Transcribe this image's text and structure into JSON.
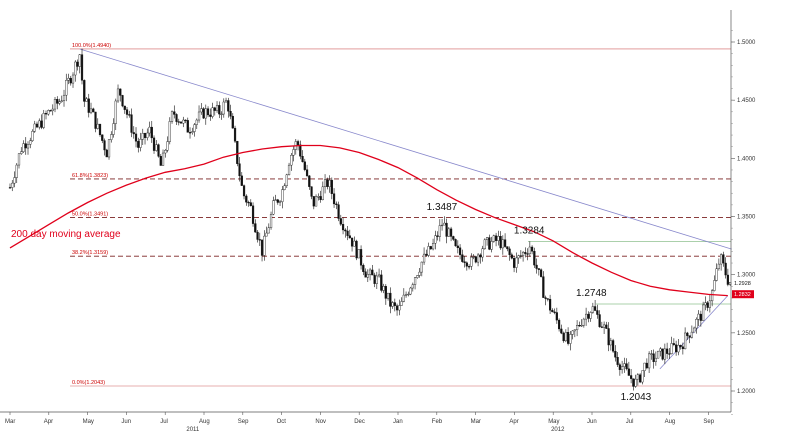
{
  "chart_data": {
    "type": "candlestick",
    "ylim": [
      1.17,
      1.53
    ],
    "y_ticks": [
      {
        "value": 1.2,
        "label": "1.2000"
      },
      {
        "value": 1.25,
        "label": "1.2500"
      },
      {
        "value": 1.3,
        "label": "1.3000"
      },
      {
        "value": 1.35,
        "label": "1.3500"
      },
      {
        "value": 1.4,
        "label": "1.4000"
      },
      {
        "value": 1.45,
        "label": "1.4500"
      },
      {
        "value": 1.5,
        "label": "1.5000"
      }
    ],
    "x_ticks": [
      {
        "label": "Mar",
        "x": 0
      },
      {
        "label": "Apr",
        "x": 1
      },
      {
        "label": "May",
        "x": 2
      },
      {
        "label": "Jun",
        "x": 3
      },
      {
        "label": "Jul",
        "x": 4
      },
      {
        "label": "Aug",
        "x": 5
      },
      {
        "label": "Sep",
        "x": 6
      },
      {
        "label": "Oct",
        "x": 7
      },
      {
        "label": "Nov",
        "x": 8
      },
      {
        "label": "Dec",
        "x": 9
      },
      {
        "label": "Jan",
        "x": 10
      },
      {
        "label": "Feb",
        "x": 11
      },
      {
        "label": "Mar",
        "x": 12
      },
      {
        "label": "Apr",
        "x": 13
      },
      {
        "label": "May",
        "x": 14
      },
      {
        "label": "Jun",
        "x": 15
      },
      {
        "label": "Jul",
        "x": 16
      },
      {
        "label": "Aug",
        "x": 17
      },
      {
        "label": "Sep",
        "x": 18
      }
    ],
    "year_labels": [
      {
        "label": "2011",
        "x": 4.7
      },
      {
        "label": "2012",
        "x": 14.1
      }
    ],
    "fib_levels": [
      {
        "value": 1.494,
        "label": "100.0%(1.4940)"
      },
      {
        "value": 1.3823,
        "label": "61.8%(1.3823)"
      },
      {
        "value": 1.3491,
        "label": "50.0%(1.3491)"
      },
      {
        "value": 1.3159,
        "label": "38.2%(1.3159)"
      },
      {
        "value": 1.2043,
        "label": "0.0%(1.2043)"
      }
    ],
    "horizontal_levels": [
      {
        "value": 1.3284,
        "x_start": 13.35
      },
      {
        "value": 1.2748,
        "x_start": 15.1
      }
    ],
    "annotations": [
      {
        "label": "1.3487",
        "x": 11.15,
        "value": 1.3487
      },
      {
        "label": "1.3284",
        "x": 13.4,
        "value": 1.3284
      },
      {
        "label": "1.2748",
        "x": 15.0,
        "value": 1.2748
      },
      {
        "label": "1.2043",
        "x": 16.15,
        "value": 1.2043
      }
    ],
    "trendlines": [
      {
        "points": [
          [
            1.8,
            1.494
          ],
          [
            18.6,
            1.322
          ]
        ],
        "color": "#8888cc"
      },
      {
        "points": [
          [
            16.75,
            1.219
          ],
          [
            18.5,
            1.282
          ]
        ],
        "color": "#8888cc"
      }
    ],
    "moving_average": {
      "label": "200 day moving average",
      "color": "#e0001b",
      "points": [
        [
          0,
          1.323
        ],
        [
          0.5,
          1.333
        ],
        [
          1,
          1.343
        ],
        [
          1.5,
          1.353
        ],
        [
          2,
          1.362
        ],
        [
          2.5,
          1.37
        ],
        [
          3,
          1.377
        ],
        [
          3.5,
          1.383
        ],
        [
          4,
          1.388
        ],
        [
          4.5,
          1.391
        ],
        [
          5,
          1.395
        ],
        [
          5.5,
          1.401
        ],
        [
          6,
          1.405
        ],
        [
          6.5,
          1.408
        ],
        [
          7,
          1.41
        ],
        [
          7.5,
          1.411
        ],
        [
          8,
          1.411
        ],
        [
          8.5,
          1.409
        ],
        [
          9,
          1.405
        ],
        [
          9.5,
          1.399
        ],
        [
          10,
          1.392
        ],
        [
          10.5,
          1.383
        ],
        [
          11,
          1.373
        ],
        [
          11.5,
          1.364
        ],
        [
          12,
          1.356
        ],
        [
          12.5,
          1.349
        ],
        [
          13,
          1.343
        ],
        [
          13.5,
          1.337
        ],
        [
          14,
          1.329
        ],
        [
          14.5,
          1.319
        ],
        [
          15,
          1.31
        ],
        [
          15.5,
          1.302
        ],
        [
          16,
          1.295
        ],
        [
          16.5,
          1.29
        ],
        [
          17,
          1.287
        ],
        [
          17.5,
          1.285
        ],
        [
          18,
          1.283
        ],
        [
          18.5,
          1.282
        ]
      ]
    },
    "price_path": [
      [
        0,
        1.375
      ],
      [
        0.3,
        1.41
      ],
      [
        0.6,
        1.422
      ],
      [
        1,
        1.44
      ],
      [
        1.3,
        1.45
      ],
      [
        1.6,
        1.473
      ],
      [
        1.8,
        1.49
      ],
      [
        1.9,
        1.45
      ],
      [
        2.1,
        1.44
      ],
      [
        2.3,
        1.422
      ],
      [
        2.5,
        1.405
      ],
      [
        2.8,
        1.46
      ],
      [
        3.0,
        1.44
      ],
      [
        3.3,
        1.41
      ],
      [
        3.6,
        1.424
      ],
      [
        3.9,
        1.392
      ],
      [
        4.2,
        1.44
      ],
      [
        4.6,
        1.425
      ],
      [
        5.0,
        1.44
      ],
      [
        5.4,
        1.44
      ],
      [
        5.6,
        1.45
      ],
      [
        5.8,
        1.41
      ],
      [
        6.0,
        1.37
      ],
      [
        6.2,
        1.358
      ],
      [
        6.5,
        1.32
      ],
      [
        6.8,
        1.36
      ],
      [
        7.0,
        1.37
      ],
      [
        7.2,
        1.4
      ],
      [
        7.4,
        1.415
      ],
      [
        7.6,
        1.39
      ],
      [
        7.8,
        1.36
      ],
      [
        8.2,
        1.38
      ],
      [
        8.5,
        1.35
      ],
      [
        8.8,
        1.33
      ],
      [
        9.2,
        1.3
      ],
      [
        9.5,
        1.295
      ],
      [
        9.8,
        1.275
      ],
      [
        10.0,
        1.268
      ],
      [
        10.3,
        1.29
      ],
      [
        10.6,
        1.31
      ],
      [
        10.9,
        1.325
      ],
      [
        11.15,
        1.345
      ],
      [
        11.5,
        1.32
      ],
      [
        11.9,
        1.31
      ],
      [
        12.2,
        1.325
      ],
      [
        12.6,
        1.33
      ],
      [
        13.0,
        1.31
      ],
      [
        13.4,
        1.325
      ],
      [
        13.8,
        1.28
      ],
      [
        14.1,
        1.26
      ],
      [
        14.4,
        1.24
      ],
      [
        14.7,
        1.26
      ],
      [
        15.0,
        1.272
      ],
      [
        15.3,
        1.255
      ],
      [
        15.6,
        1.23
      ],
      [
        15.9,
        1.215
      ],
      [
        16.15,
        1.206
      ],
      [
        16.4,
        1.225
      ],
      [
        16.7,
        1.23
      ],
      [
        17.0,
        1.235
      ],
      [
        17.3,
        1.24
      ],
      [
        17.6,
        1.255
      ],
      [
        17.9,
        1.27
      ],
      [
        18.1,
        1.285
      ],
      [
        18.3,
        1.315
      ],
      [
        18.5,
        1.296
      ],
      [
        18.6,
        1.292
      ]
    ],
    "last_price": {
      "value": 1.2928,
      "label": "1.2928"
    },
    "ma_badge": {
      "value": 1.2832,
      "label": "1.2832"
    }
  }
}
